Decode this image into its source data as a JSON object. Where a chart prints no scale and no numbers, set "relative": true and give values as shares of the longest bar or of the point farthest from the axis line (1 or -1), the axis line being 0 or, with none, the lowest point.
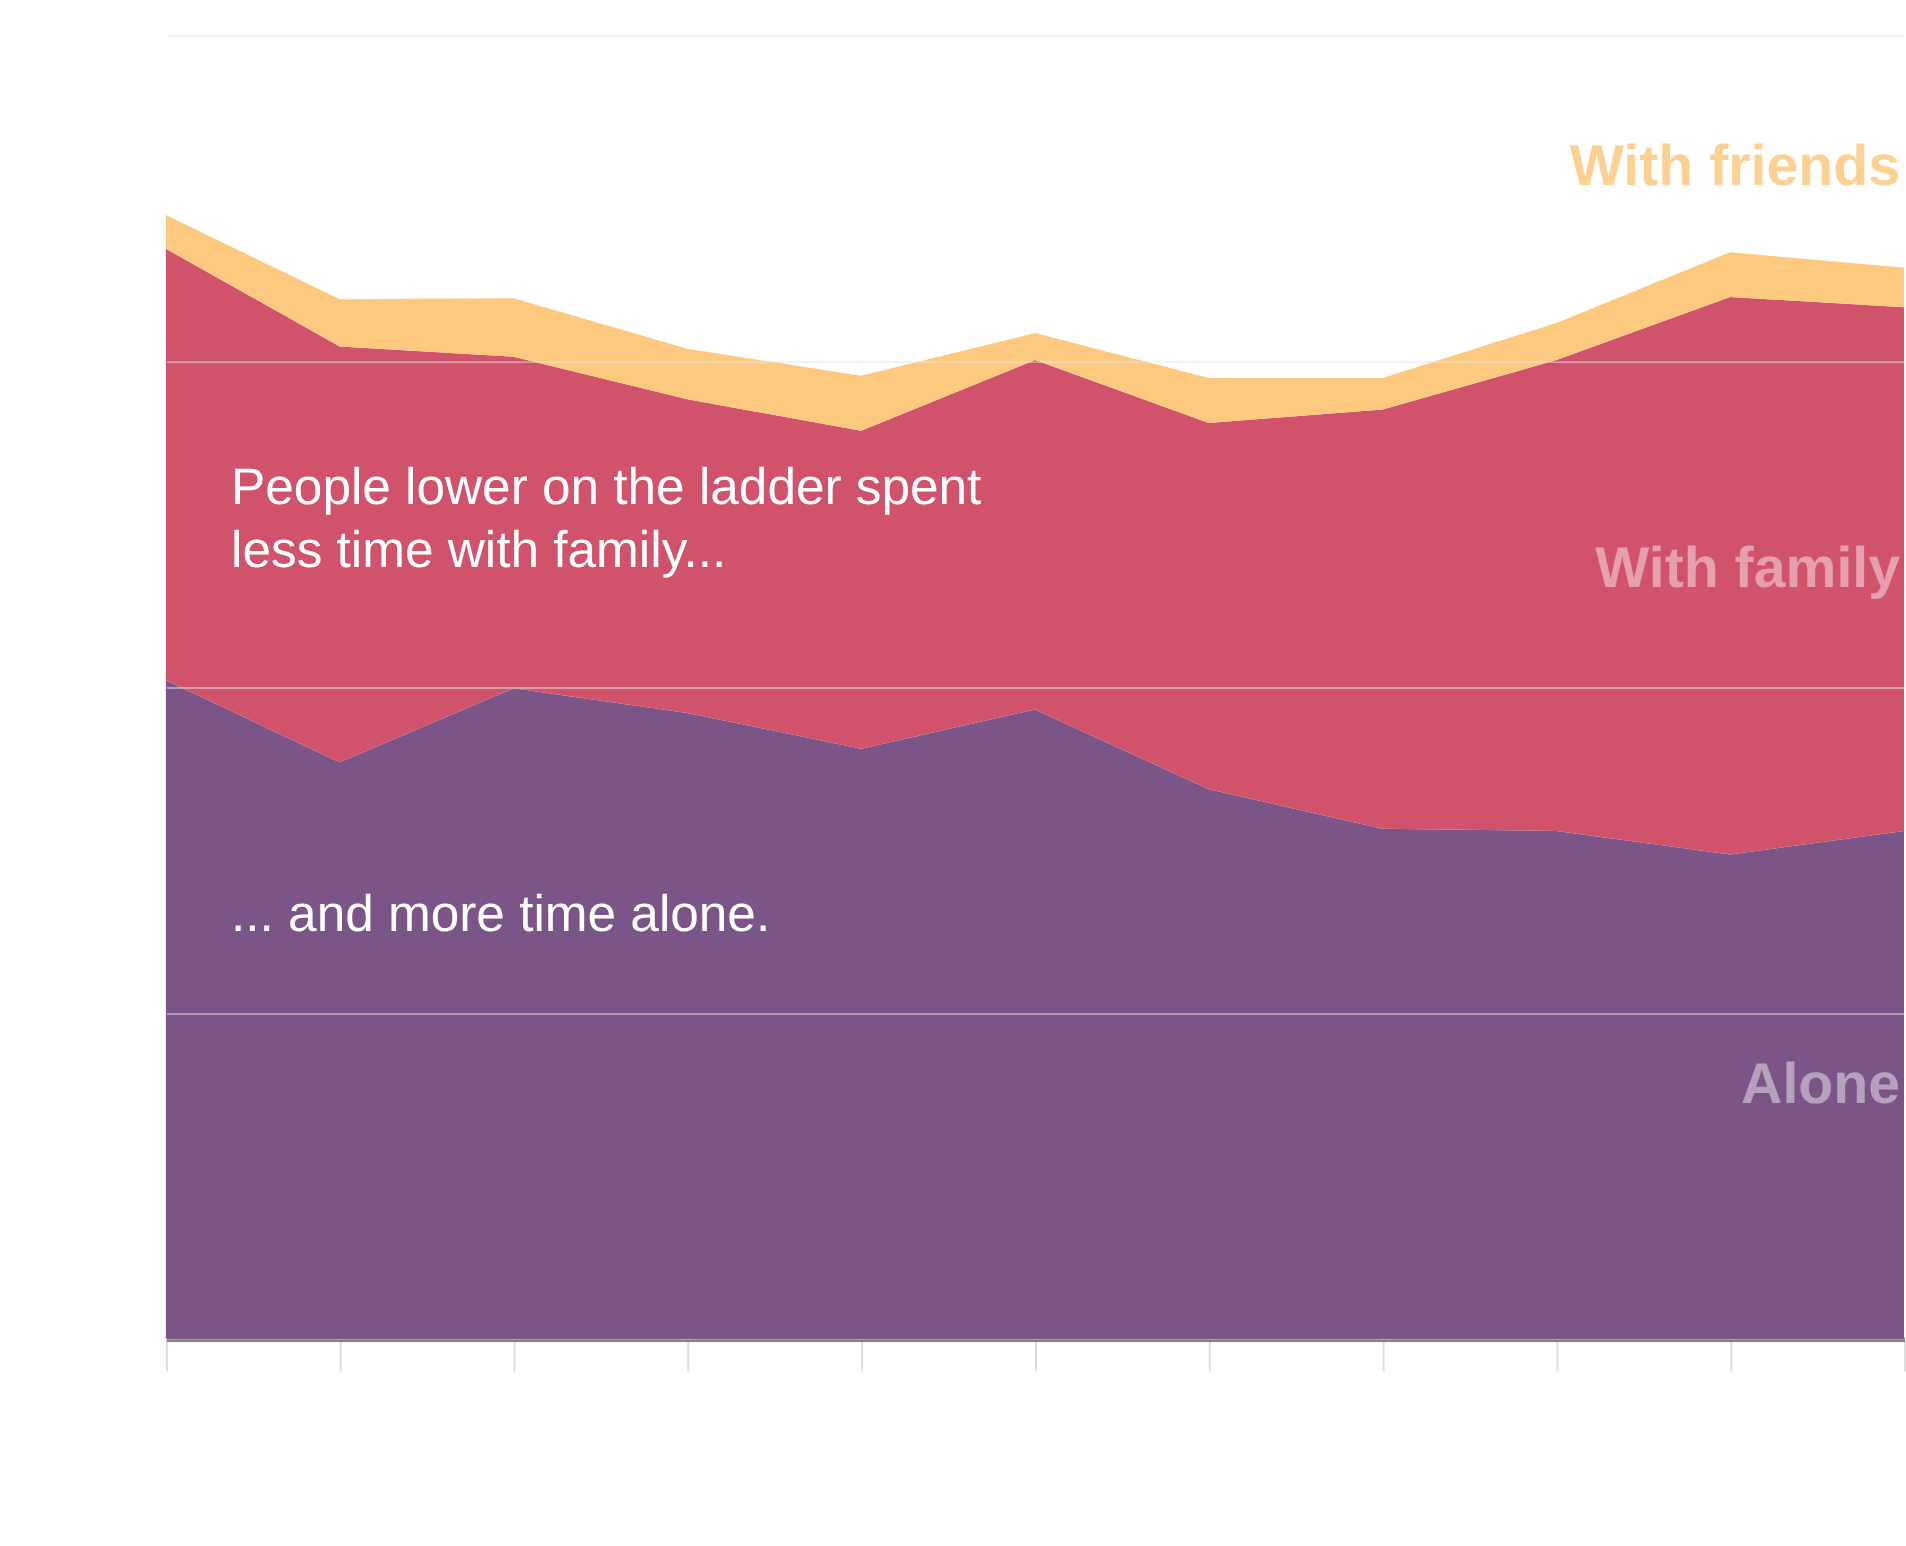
{
  "chart_data": {
    "type": "area",
    "relative": true,
    "stacked": true,
    "grid": "y",
    "categories": [
      null,
      null,
      null,
      null,
      null,
      null,
      null,
      null,
      null,
      null,
      null
    ],
    "series": [
      {
        "name": "Alone",
        "color": "#7b5587",
        "values": [
          0.586,
          0.513,
          0.579,
          0.557,
          0.525,
          0.56,
          0.489,
          0.454,
          0.452,
          0.431,
          0.452
        ]
      },
      {
        "name": "With family",
        "color": "#d0526b",
        "values": [
          0.384,
          0.37,
          0.295,
          0.279,
          0.283,
          0.311,
          0.326,
          0.373,
          0.419,
          0.496,
          0.466
        ]
      },
      {
        "name": "With friends",
        "color": "#fdc97f",
        "values": [
          0.03,
          0.042,
          0.052,
          0.045,
          0.049,
          0.024,
          0.04,
          0.028,
          0.033,
          0.04,
          0.035
        ]
      }
    ],
    "annotations": [
      "People lower on the ladder spent\nless time with family...",
      "... and more time alone."
    ]
  }
}
